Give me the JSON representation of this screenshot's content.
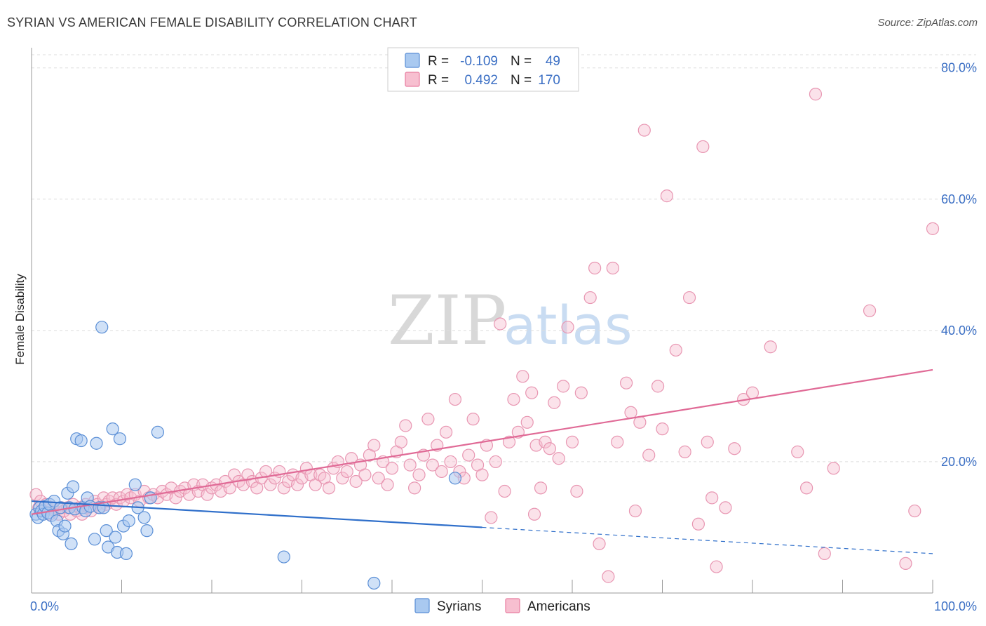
{
  "header": {
    "title": "SYRIAN VS AMERICAN FEMALE DISABILITY CORRELATION CHART",
    "source": "Source: ZipAtlas.com"
  },
  "watermark": {
    "part1": "ZIP",
    "part2": "atlas"
  },
  "legend": {
    "rows": [
      {
        "r_label": "R =",
        "r_value": "-0.109",
        "n_label": "N =",
        "n_value": "49",
        "color": "#a9c9f0",
        "stroke": "#5b8fd6"
      },
      {
        "r_label": "R =",
        "r_value": "0.492",
        "n_label": "N =",
        "n_value": "170",
        "color": "#f7bfd0",
        "stroke": "#e87da0"
      }
    ]
  },
  "bottom_legend": [
    {
      "label": "Syrians",
      "color": "#a9c9f0",
      "stroke": "#5b8fd6"
    },
    {
      "label": "Americans",
      "color": "#f7bfd0",
      "stroke": "#e87da0"
    }
  ],
  "chart_data": {
    "type": "scatter",
    "title": "SYRIAN VS AMERICAN FEMALE DISABILITY CORRELATION CHART",
    "xlabel": "",
    "ylabel": "Female Disability",
    "xlim": [
      0,
      100
    ],
    "ylim": [
      0,
      82
    ],
    "x_tick_labels": [
      "0.0%",
      "100.0%"
    ],
    "y_ticks": [
      20,
      40,
      60,
      80
    ],
    "y_tick_labels": [
      "20.0%",
      "40.0%",
      "60.0%",
      "80.0%"
    ],
    "grid": true,
    "legend_position": "top-center",
    "colors": {
      "syrians_fill": "#a9c9f0",
      "syrians_line": "#2f6fca",
      "americans_fill": "#f7bfd0",
      "americans_line": "#e06a96"
    },
    "series": [
      {
        "name": "Syrians",
        "r": -0.109,
        "n": 49,
        "trend": {
          "x0": 0,
          "y0": 14.0,
          "x1": 50,
          "y1": 10.0,
          "dashed_to_x": 100,
          "dashed_to_y": 6.0
        },
        "points": [
          [
            0.5,
            12.0
          ],
          [
            0.7,
            11.5
          ],
          [
            0.9,
            13.0
          ],
          [
            1.1,
            12.5
          ],
          [
            1.3,
            12.0
          ],
          [
            1.5,
            13.2
          ],
          [
            1.8,
            12.2
          ],
          [
            2.0,
            13.5
          ],
          [
            2.2,
            11.8
          ],
          [
            2.5,
            14.0
          ],
          [
            2.8,
            11.0
          ],
          [
            3.0,
            9.5
          ],
          [
            3.2,
            13.0
          ],
          [
            3.5,
            9.0
          ],
          [
            3.7,
            10.2
          ],
          [
            4.0,
            15.2
          ],
          [
            4.2,
            13.0
          ],
          [
            4.4,
            7.5
          ],
          [
            4.6,
            16.2
          ],
          [
            4.8,
            12.8
          ],
          [
            5.0,
            23.5
          ],
          [
            5.5,
            23.2
          ],
          [
            5.7,
            13.0
          ],
          [
            6.0,
            12.5
          ],
          [
            6.2,
            14.5
          ],
          [
            6.5,
            13.2
          ],
          [
            7.0,
            8.2
          ],
          [
            7.2,
            22.8
          ],
          [
            7.5,
            13.0
          ],
          [
            7.8,
            40.5
          ],
          [
            8.0,
            13.0
          ],
          [
            8.3,
            9.5
          ],
          [
            8.5,
            7.0
          ],
          [
            9.0,
            25.0
          ],
          [
            9.3,
            8.5
          ],
          [
            9.5,
            6.2
          ],
          [
            9.8,
            23.5
          ],
          [
            10.2,
            10.2
          ],
          [
            10.5,
            6.0
          ],
          [
            10.8,
            11.0
          ],
          [
            11.5,
            16.5
          ],
          [
            11.8,
            13.0
          ],
          [
            12.5,
            11.5
          ],
          [
            12.8,
            9.5
          ],
          [
            13.2,
            14.5
          ],
          [
            14.0,
            24.5
          ],
          [
            28.0,
            5.5
          ],
          [
            38.0,
            1.5
          ],
          [
            47.0,
            17.5
          ]
        ]
      },
      {
        "name": "Americans",
        "r": 0.492,
        "n": 170,
        "trend": {
          "x0": 0,
          "y0": 12.0,
          "x1": 100,
          "y1": 34.0
        },
        "points": [
          [
            0.5,
            15.0
          ],
          [
            0.8,
            13.0
          ],
          [
            1.0,
            14.0
          ],
          [
            1.3,
            12.5
          ],
          [
            1.6,
            13.5
          ],
          [
            2.0,
            12.0
          ],
          [
            2.3,
            13.0
          ],
          [
            2.6,
            12.5
          ],
          [
            3.0,
            12.0
          ],
          [
            3.3,
            13.0
          ],
          [
            3.6,
            12.5
          ],
          [
            4.0,
            13.0
          ],
          [
            4.3,
            12.0
          ],
          [
            4.6,
            13.5
          ],
          [
            5.0,
            12.5
          ],
          [
            5.3,
            13.0
          ],
          [
            5.6,
            12.0
          ],
          [
            6.0,
            13.5
          ],
          [
            6.3,
            13.0
          ],
          [
            6.6,
            12.5
          ],
          [
            7.0,
            14.0
          ],
          [
            7.3,
            13.5
          ],
          [
            7.6,
            13.0
          ],
          [
            8.0,
            14.5
          ],
          [
            8.3,
            13.5
          ],
          [
            8.6,
            14.0
          ],
          [
            9.0,
            14.5
          ],
          [
            9.4,
            13.5
          ],
          [
            9.8,
            14.5
          ],
          [
            10.2,
            14.0
          ],
          [
            10.6,
            15.0
          ],
          [
            11.0,
            14.5
          ],
          [
            11.5,
            15.0
          ],
          [
            12.0,
            14.0
          ],
          [
            12.5,
            15.5
          ],
          [
            13.0,
            14.5
          ],
          [
            13.5,
            15.0
          ],
          [
            14.0,
            14.5
          ],
          [
            14.5,
            15.5
          ],
          [
            15.0,
            15.0
          ],
          [
            15.5,
            16.0
          ],
          [
            16.0,
            14.5
          ],
          [
            16.5,
            15.5
          ],
          [
            17.0,
            16.0
          ],
          [
            17.5,
            15.0
          ],
          [
            18.0,
            16.5
          ],
          [
            18.5,
            15.5
          ],
          [
            19.0,
            16.5
          ],
          [
            19.5,
            15.0
          ],
          [
            20.0,
            16.0
          ],
          [
            20.5,
            16.5
          ],
          [
            21.0,
            15.5
          ],
          [
            21.5,
            17.0
          ],
          [
            22.0,
            16.0
          ],
          [
            22.5,
            18.0
          ],
          [
            23.0,
            17.0
          ],
          [
            23.5,
            16.5
          ],
          [
            24.0,
            18.0
          ],
          [
            24.5,
            17.0
          ],
          [
            25.0,
            16.0
          ],
          [
            25.5,
            17.5
          ],
          [
            26.0,
            18.5
          ],
          [
            26.5,
            16.5
          ],
          [
            27.0,
            17.5
          ],
          [
            27.5,
            18.5
          ],
          [
            28.0,
            16.0
          ],
          [
            28.5,
            17.0
          ],
          [
            29.0,
            18.0
          ],
          [
            29.5,
            16.5
          ],
          [
            30.0,
            17.5
          ],
          [
            30.5,
            19.0
          ],
          [
            31.0,
            18.0
          ],
          [
            31.5,
            16.5
          ],
          [
            32.0,
            18.0
          ],
          [
            32.5,
            17.5
          ],
          [
            33.0,
            16.0
          ],
          [
            33.5,
            19.0
          ],
          [
            34.0,
            20.0
          ],
          [
            34.5,
            17.5
          ],
          [
            35.0,
            18.5
          ],
          [
            35.5,
            20.5
          ],
          [
            36.0,
            17.0
          ],
          [
            36.5,
            19.5
          ],
          [
            37.0,
            18.0
          ],
          [
            37.5,
            21.0
          ],
          [
            38.0,
            22.5
          ],
          [
            38.5,
            17.5
          ],
          [
            39.0,
            20.0
          ],
          [
            39.5,
            16.5
          ],
          [
            40.0,
            19.0
          ],
          [
            40.5,
            21.5
          ],
          [
            41.0,
            23.0
          ],
          [
            41.5,
            25.5
          ],
          [
            42.0,
            19.5
          ],
          [
            42.5,
            16.0
          ],
          [
            43.0,
            18.0
          ],
          [
            43.5,
            21.0
          ],
          [
            44.0,
            26.5
          ],
          [
            44.5,
            19.5
          ],
          [
            45.0,
            22.5
          ],
          [
            45.5,
            18.5
          ],
          [
            46.0,
            24.5
          ],
          [
            46.5,
            20.0
          ],
          [
            47.0,
            29.5
          ],
          [
            47.5,
            18.5
          ],
          [
            48.0,
            17.5
          ],
          [
            48.5,
            21.0
          ],
          [
            49.0,
            26.5
          ],
          [
            49.5,
            19.5
          ],
          [
            50.0,
            18.0
          ],
          [
            50.5,
            22.5
          ],
          [
            51.0,
            11.5
          ],
          [
            51.5,
            20.0
          ],
          [
            52.0,
            41.0
          ],
          [
            52.5,
            15.5
          ],
          [
            53.0,
            23.0
          ],
          [
            53.5,
            29.5
          ],
          [
            54.0,
            24.5
          ],
          [
            54.5,
            33.0
          ],
          [
            55.0,
            26.0
          ],
          [
            55.5,
            30.5
          ],
          [
            56.0,
            22.5
          ],
          [
            56.5,
            16.0
          ],
          [
            57.0,
            23.0
          ],
          [
            57.5,
            22.0
          ],
          [
            58.0,
            29.0
          ],
          [
            58.5,
            20.5
          ],
          [
            59.0,
            31.5
          ],
          [
            59.5,
            40.5
          ],
          [
            60.0,
            23.0
          ],
          [
            60.5,
            15.5
          ],
          [
            61.0,
            30.5
          ],
          [
            62.0,
            45.0
          ],
          [
            62.5,
            49.5
          ],
          [
            63.0,
            7.5
          ],
          [
            64.0,
            2.5
          ],
          [
            64.5,
            49.5
          ],
          [
            65.0,
            23.0
          ],
          [
            66.0,
            32.0
          ],
          [
            66.5,
            27.5
          ],
          [
            67.0,
            12.5
          ],
          [
            67.5,
            26.0
          ],
          [
            68.0,
            70.5
          ],
          [
            68.5,
            21.0
          ],
          [
            69.5,
            31.5
          ],
          [
            70.0,
            25.0
          ],
          [
            70.5,
            60.5
          ],
          [
            71.5,
            37.0
          ],
          [
            72.5,
            21.5
          ],
          [
            73.0,
            45.0
          ],
          [
            74.0,
            10.5
          ],
          [
            74.5,
            68.0
          ],
          [
            75.0,
            23.0
          ],
          [
            75.5,
            14.5
          ],
          [
            76.0,
            4.0
          ],
          [
            77.0,
            13.0
          ],
          [
            78.0,
            22.0
          ],
          [
            79.0,
            29.5
          ],
          [
            80.0,
            30.5
          ],
          [
            82.0,
            37.5
          ],
          [
            85.0,
            21.5
          ],
          [
            86.0,
            16.0
          ],
          [
            87.0,
            76.0
          ],
          [
            88.0,
            6.0
          ],
          [
            89.0,
            19.0
          ],
          [
            93.0,
            43.0
          ],
          [
            97.0,
            4.5
          ],
          [
            98.0,
            12.5
          ],
          [
            100.0,
            55.5
          ],
          [
            55.8,
            12.0
          ]
        ]
      }
    ]
  }
}
